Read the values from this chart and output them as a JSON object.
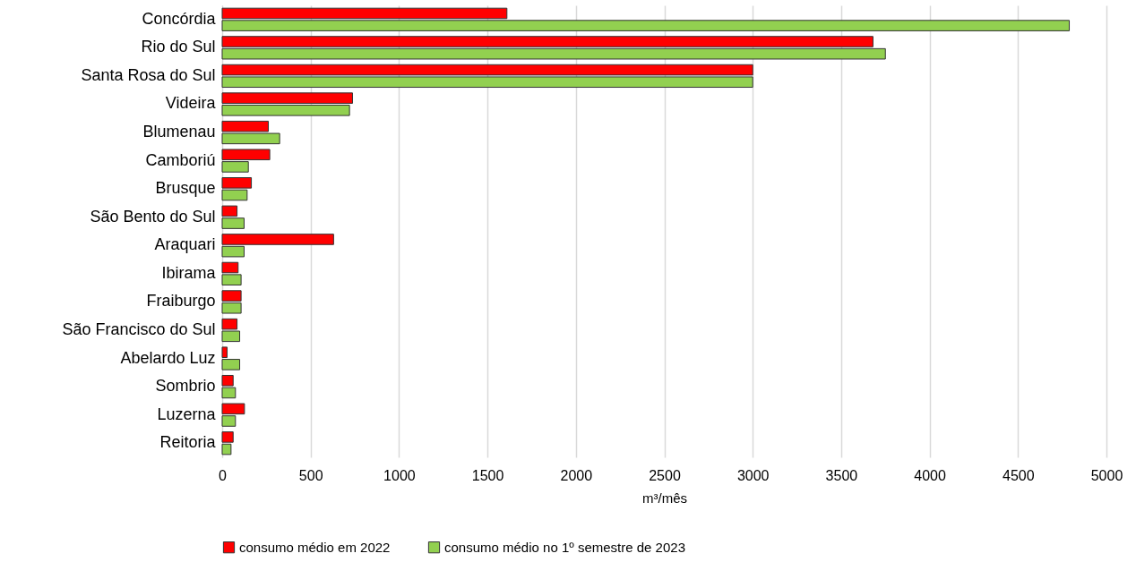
{
  "chart_data": {
    "type": "bar",
    "orientation": "horizontal",
    "xlabel": "m³/mês",
    "categories": [
      "Concórdia",
      "Rio do Sul",
      "Santa Rosa do Sul",
      "Videira",
      "Blumenau",
      "Camboriú",
      "Brusque",
      "São Bento do Sul",
      "Araquari",
      "Ibirama",
      "Fraiburgo",
      "São Francisco do Sul",
      "Abelardo Luz",
      "Sombrio",
      "Luzerna",
      "Reitoria"
    ],
    "series": [
      {
        "name": "consumo médio em 2022",
        "color": "#ff0000",
        "values": [
          1610,
          3680,
          3000,
          737,
          261,
          269,
          165,
          84,
          630,
          90,
          107,
          84,
          28,
          62,
          126,
          62
        ]
      },
      {
        "name": "consumo médio no 1º semestre de 2023",
        "color": "#92d050",
        "values": [
          4790,
          3750,
          3000,
          720,
          325,
          148,
          141,
          124,
          124,
          107,
          107,
          99,
          99,
          75,
          75,
          50
        ]
      }
    ],
    "xlim": [
      0,
      5000
    ],
    "xticks": [
      0,
      500,
      1000,
      1500,
      2000,
      2500,
      3000,
      3500,
      4000,
      4500,
      5000
    ],
    "grid": "x",
    "legend": "bottom"
  }
}
